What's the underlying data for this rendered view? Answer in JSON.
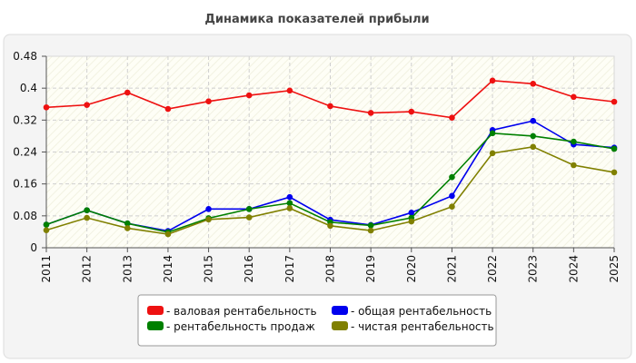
{
  "chart_data": {
    "type": "line",
    "title": "Динамика показателей прибыли",
    "xlabel": "",
    "ylabel": "",
    "x": [
      "2011",
      "2012",
      "2013",
      "2014",
      "2015",
      "2016",
      "2017",
      "2018",
      "2019",
      "2020",
      "2021",
      "2022",
      "2023",
      "2024",
      "2025"
    ],
    "y_ticks": [
      "0",
      "0.08",
      "0.16",
      "0.24",
      "0.32",
      "0.4",
      "0.48"
    ],
    "ylim": [
      0,
      0.48
    ],
    "grid": true,
    "legend_position": "bottom",
    "series": [
      {
        "name": "- валовая рентабельность",
        "color": "#ee1111",
        "values": [
          0.352,
          0.358,
          0.389,
          0.348,
          0.367,
          0.382,
          0.394,
          0.355,
          0.338,
          0.341,
          0.326,
          0.419,
          0.411,
          0.378,
          0.366
        ]
      },
      {
        "name": "- общая рентабельность",
        "color": "#0000ee",
        "values": [
          0.058,
          0.094,
          0.061,
          0.042,
          0.097,
          0.097,
          0.127,
          0.07,
          0.057,
          0.088,
          0.13,
          0.295,
          0.318,
          0.259,
          0.251
        ]
      },
      {
        "name": "- рентабельность продаж",
        "color": "#008000",
        "values": [
          0.058,
          0.094,
          0.061,
          0.039,
          0.074,
          0.097,
          0.112,
          0.064,
          0.056,
          0.075,
          0.177,
          0.287,
          0.28,
          0.266,
          0.248
        ]
      },
      {
        "name": "- чистая рентабельность",
        "color": "#808000",
        "values": [
          0.044,
          0.075,
          0.049,
          0.034,
          0.071,
          0.076,
          0.099,
          0.055,
          0.043,
          0.066,
          0.103,
          0.237,
          0.253,
          0.207,
          0.189
        ]
      }
    ]
  }
}
